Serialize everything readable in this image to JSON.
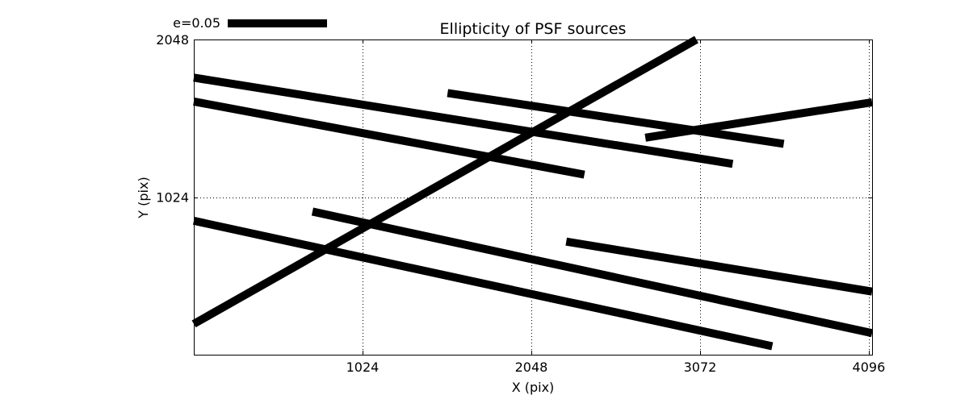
{
  "chart_data": {
    "type": "line",
    "title": "Ellipticity of PSF sources",
    "xlabel": "X (pix)",
    "ylabel": "Y (pix)",
    "xlim": [
      0,
      4116
    ],
    "ylim": [
      0,
      2048
    ],
    "x_ticks": [
      1024,
      2048,
      3072,
      4096
    ],
    "x_tick_labels": [
      "1024",
      "2048",
      "3072",
      "4096"
    ],
    "y_ticks": [
      1024,
      2048
    ],
    "y_tick_labels": [
      "1024",
      "2048"
    ],
    "grid": true,
    "legend": {
      "label": "e=0.05",
      "placement": "top-left outside",
      "reference_ellipticity": 0.05
    },
    "line_color": "#000000",
    "series": [
      {
        "values": [
          [
            0,
            200
          ],
          [
            3050,
            2048
          ]
        ]
      },
      {
        "values": [
          [
            0,
            1800
          ],
          [
            3270,
            1240
          ]
        ]
      },
      {
        "values": [
          [
            0,
            1645
          ],
          [
            2370,
            1170
          ]
        ]
      },
      {
        "values": [
          [
            1540,
            1700
          ],
          [
            3580,
            1370
          ]
        ]
      },
      {
        "values": [
          [
            2740,
            1410
          ],
          [
            4116,
            1640
          ]
        ]
      },
      {
        "values": [
          [
            0,
            870
          ],
          [
            3510,
            55
          ]
        ]
      },
      {
        "values": [
          [
            720,
            930
          ],
          [
            4116,
            140
          ]
        ]
      },
      {
        "values": [
          [
            2260,
            735
          ],
          [
            4116,
            410
          ]
        ]
      }
    ]
  }
}
